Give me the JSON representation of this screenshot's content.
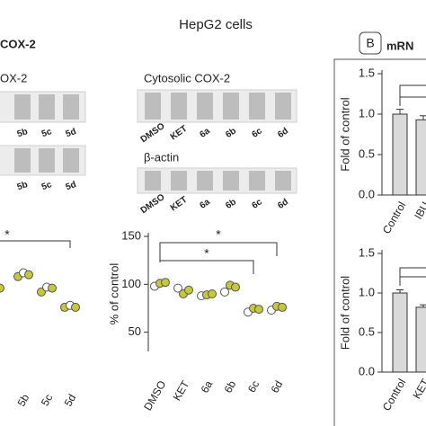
{
  "title": "HepG2 cells",
  "panel_a_label": "COX-2",
  "panel_b": {
    "letter": "B",
    "title": "mRN"
  },
  "blots": [
    {
      "label": "OX-2",
      "lanes": [
        "5b",
        "5c",
        "5d"
      ]
    },
    {
      "lanes": [
        "5b",
        "5c",
        "5d"
      ]
    },
    {
      "label": "Cytosolic COX-2",
      "lanes": [
        "DMSO",
        "KET",
        "6a",
        "6b",
        "6c",
        "6d"
      ]
    },
    {
      "label": "β-actin",
      "lanes": [
        "DMSO",
        "KET",
        "6a",
        "6b",
        "6c",
        "6d"
      ]
    }
  ],
  "chart_data": [
    {
      "type": "dot",
      "categories": [
        null,
        "5b",
        "5c",
        "5d"
      ],
      "values": [
        [
          96
        ],
        [
          108,
          112,
          110
        ],
        [
          92,
          97,
          96
        ],
        [
          76,
          78,
          76
        ]
      ],
      "marker_colors": [
        "#c5c83a",
        "#ffffff",
        "#c5c83a"
      ],
      "annotations": [
        "*"
      ]
    },
    {
      "type": "dot",
      "ylabel": "% of control",
      "categories": [
        "DMSO",
        "KET",
        "6a",
        "6b",
        "6c",
        "6d"
      ],
      "values": [
        [
          98,
          101,
          102
        ],
        [
          96,
          90,
          94
        ],
        [
          88,
          89,
          90
        ],
        [
          92,
          99,
          97
        ],
        [
          71,
          75,
          74
        ],
        [
          73,
          77,
          76
        ]
      ],
      "marker_colors": [
        "#ffffff",
        "#c5c83a",
        "#c5c83a"
      ],
      "ylim": [
        30,
        150
      ],
      "yticks": [
        50,
        100,
        150
      ],
      "annotations": [
        "*",
        "*"
      ]
    },
    {
      "type": "bar",
      "ylabel": "Fold of control",
      "categories": [
        "Control",
        "IBU"
      ],
      "values": [
        1.0,
        0.93
      ],
      "errors": [
        0.06,
        0.05
      ],
      "color": "#d9d9d9",
      "ylim": [
        0,
        1.5
      ],
      "yticks": [
        {
          "value": 0,
          "label": "0.0"
        },
        {
          "value": 0.5,
          "label": "0.5"
        },
        {
          "value": 1,
          "label": "1.0"
        },
        {
          "value": 1.5,
          "label": "1.5"
        }
      ]
    },
    {
      "type": "bar",
      "ylabel": "Fold of control",
      "categories": [
        "Control",
        "KET"
      ],
      "values": [
        1.0,
        0.82
      ],
      "errors": [
        0.04,
        0.03
      ],
      "color": "#d9d9d9",
      "ylim": [
        0,
        1.5
      ],
      "yticks": [
        {
          "value": 0,
          "label": "0.0"
        },
        {
          "value": 0.5,
          "label": "0.5"
        },
        {
          "value": 1,
          "label": "1.0"
        },
        {
          "value": 1.5,
          "label": "1.5"
        }
      ]
    }
  ]
}
